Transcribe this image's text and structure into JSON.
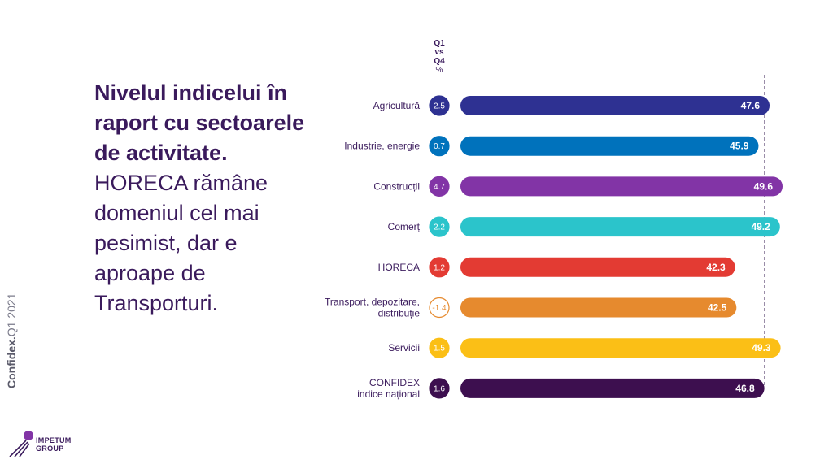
{
  "headline": {
    "bold": "Nivelul indicelui în raport cu sectoarele de activitate.",
    "light": "HORECA rămâne domeniul cel mai pesimist, dar e aproape de Transporturi."
  },
  "brand": {
    "bold": "Confidex.",
    "rest": "Q1 2021"
  },
  "logo": {
    "line1": "IMPETUM",
    "line2": "GROUP"
  },
  "column_header": {
    "l1": "Q1",
    "l2": "vs",
    "l3": "Q4",
    "l4": "%"
  },
  "colors": {
    "text": "#3a1a5c",
    "reference_line": "#8a7a9a"
  },
  "chart_data": {
    "type": "bar",
    "orientation": "horizontal",
    "reference_value": 46.8,
    "xlim": [
      0,
      52
    ],
    "categories": [
      "Agricultură",
      "Industrie, energie",
      "Construcții",
      "Comerț",
      "HORECA",
      "Transport, depozitare, distribuție",
      "Servicii",
      "CONFIDEX indice național"
    ],
    "label_lines": [
      [
        "Agricultură"
      ],
      [
        "Industrie, energie"
      ],
      [
        "Construcții"
      ],
      [
        "Comerț"
      ],
      [
        "HORECA"
      ],
      [
        "Transport, depozitare,",
        "distribuție"
      ],
      [
        "Servicii"
      ],
      [
        "CONFIDEX",
        "indice național"
      ]
    ],
    "values": [
      47.6,
      45.9,
      49.6,
      49.2,
      42.3,
      42.5,
      49.3,
      46.8
    ],
    "value_labels": [
      "47.6",
      "45.9",
      "49.6",
      "49.2",
      "42.3",
      "42.5",
      "49.3",
      "46.8"
    ],
    "change_q1_vs_q4": [
      2.5,
      0.7,
      4.7,
      2.2,
      1.2,
      -1.4,
      1.5,
      1.6
    ],
    "change_labels": [
      "2.5",
      "0.7",
      "4.7",
      "2.2",
      "1.2",
      "-1.4",
      "1.5",
      "1.6"
    ],
    "bar_colors": [
      "#2e3192",
      "#0072bc",
      "#8234a6",
      "#2bc4cb",
      "#e33b33",
      "#e68a2e",
      "#fbbf16",
      "#3d0f4f"
    ]
  }
}
